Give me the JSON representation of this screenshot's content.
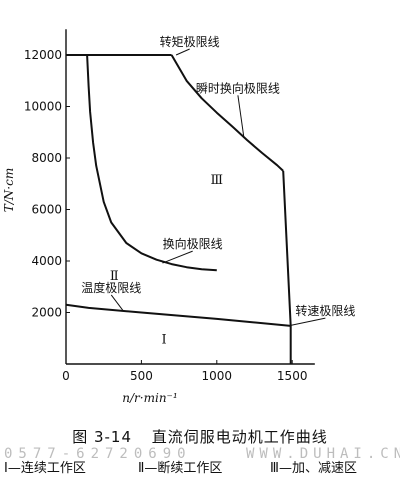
{
  "chart_data": {
    "type": "line",
    "title": "",
    "xlabel": "n/r·min⁻¹",
    "ylabel": "T/N·cm",
    "xlim": [
      0,
      1650
    ],
    "ylim": [
      0,
      13000
    ],
    "x_ticks": [
      0,
      500,
      1000,
      1500
    ],
    "x_tick_labels": [
      "0",
      "500",
      "1000",
      "1500"
    ],
    "y_ticks": [
      2000,
      4000,
      6000,
      8000,
      10000,
      12000
    ],
    "y_tick_labels": [
      "2000",
      "4000",
      "6000",
      "8000",
      "10000",
      "12000"
    ],
    "grid": false,
    "series": [
      {
        "name": "转矩极限线",
        "x": [
          0,
          700
        ],
        "y": [
          12000,
          12000
        ]
      },
      {
        "name": "瞬时换向极限线",
        "x": [
          700,
          800,
          900,
          1000,
          1100,
          1200,
          1300,
          1400,
          1440
        ],
        "y": [
          12000,
          11000,
          10320,
          9760,
          9240,
          8700,
          8200,
          7720,
          7500
        ]
      },
      {
        "name": "换向极限线",
        "x": [
          140,
          150,
          160,
          180,
          200,
          250,
          300,
          400,
          500,
          600,
          700,
          800,
          900,
          1000
        ],
        "y": [
          12000,
          10800,
          9800,
          8600,
          7700,
          6300,
          5500,
          4700,
          4300,
          4050,
          3880,
          3760,
          3680,
          3640
        ]
      },
      {
        "name": "温度极限线",
        "x": [
          0,
          150,
          500,
          1000,
          1490
        ],
        "y": [
          2300,
          2180,
          2000,
          1750,
          1480
        ]
      },
      {
        "name": "转速极限线",
        "x": [
          1440,
          1490,
          1490
        ],
        "y": [
          7500,
          1480,
          0
        ]
      }
    ],
    "annotations": [
      {
        "text": "转矩极限线",
        "x": 820,
        "y": 12350,
        "pointer": [
          730,
          12000
        ]
      },
      {
        "text": "瞬时换向极限线",
        "x": 1140,
        "y": 10550,
        "pointer": [
          1180,
          8780
        ]
      },
      {
        "text": "换向极限线",
        "x": 840,
        "y": 4500,
        "pointer": [
          640,
          3920
        ]
      },
      {
        "text": "温度极限线",
        "x": 300,
        "y": 2800,
        "pointer": [
          380,
          2060
        ]
      },
      {
        "text": "转速极限线",
        "x": 1720,
        "y": 1900,
        "pointer": [
          1490,
          1500
        ]
      }
    ],
    "region_labels": [
      {
        "text": "Ⅲ",
        "x": 1000,
        "y": 7000
      },
      {
        "text": "Ⅱ",
        "x": 320,
        "y": 3270
      },
      {
        "text": "Ⅰ",
        "x": 650,
        "y": 800
      }
    ]
  },
  "caption": {
    "number": "图 3-14",
    "title": "直流伺服电动机工作曲线"
  },
  "watermark": {
    "left": "0577-62720690",
    "right": "WWW.DUHAI.CN"
  },
  "legend_notes": {
    "item1": "Ⅰ—连续工作区",
    "item2": "Ⅱ—断续工作区",
    "item3": "Ⅲ—加、减速区"
  },
  "colors": {
    "ink": "#111111",
    "watermark": "#bdbdbd",
    "background": "#ffffff"
  }
}
